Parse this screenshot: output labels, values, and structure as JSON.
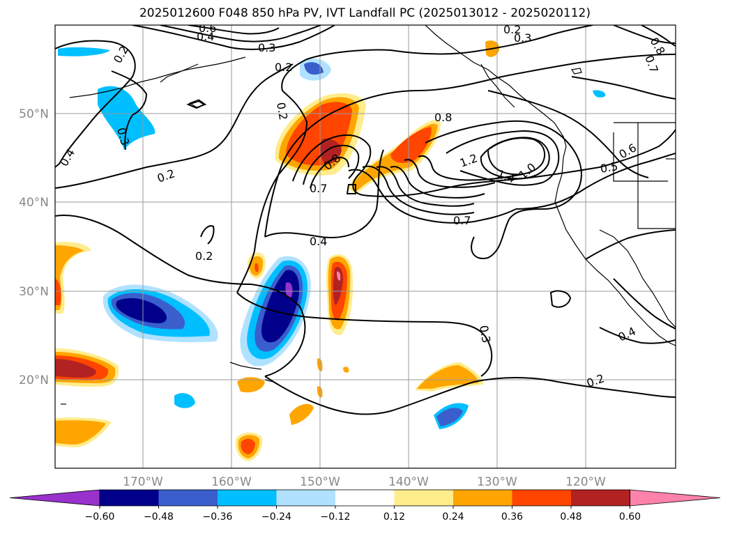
{
  "title": "2025012600 F048 850 hPa PV, IVT Landfall PC (2025013012 - 2025020112)",
  "lat_labels": [
    "50°N",
    "40°N",
    "30°N",
    "20°N"
  ],
  "lon_labels": [
    "170°W",
    "160°W",
    "150°W",
    "140°W",
    "130°W",
    "120°W"
  ],
  "colorbar": {
    "ticks": [
      "−0.60",
      "−0.48",
      "−0.36",
      "−0.24",
      "−0.12",
      "0.12",
      "0.24",
      "0.36",
      "0.48",
      "0.60"
    ],
    "colors": [
      "#9932cc",
      "#00008b",
      "#3a5fcd",
      "#00bfff",
      "#b0e2ff",
      "#ffffff",
      "#ffec8b",
      "#ffa500",
      "#ff4500",
      "#b22222",
      "#ff82ab"
    ]
  },
  "contour_labels": [
    "0.2",
    "0.3",
    "0.4",
    "0.5",
    "0.6",
    "0.7",
    "0.8",
    "1.0",
    "1.2",
    "1.4"
  ]
}
